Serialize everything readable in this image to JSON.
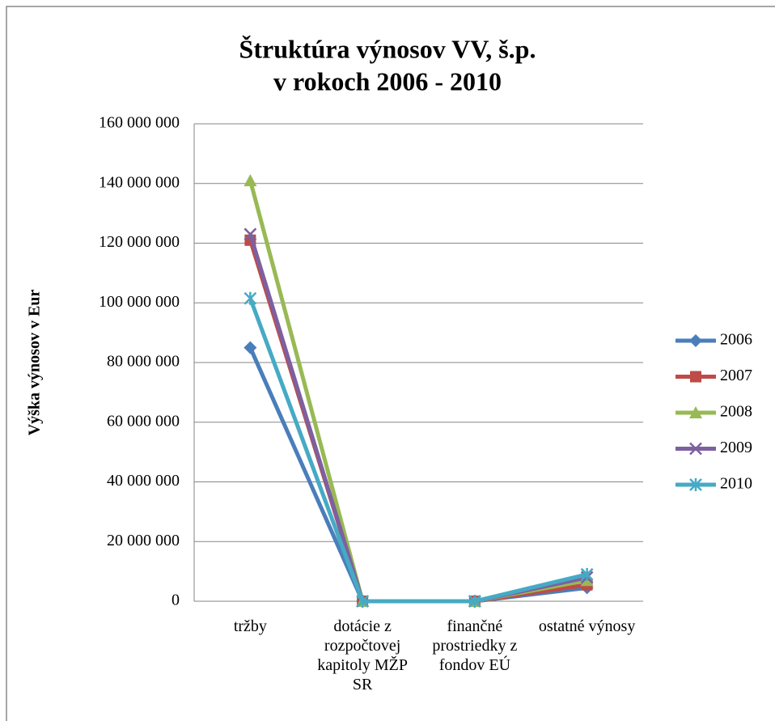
{
  "chart_data": {
    "type": "line",
    "title": "Štruktúra výnosov VV, š.p.",
    "subtitle": "v rokoch 2006 - 2010",
    "y_label": "Výška výnosov v Eur",
    "categories": [
      "tržby",
      "dotácie z rozpočtovej kapitoly MŽP SR",
      "finančné prostriedky z fondov EÚ",
      "ostatné výnosy"
    ],
    "series": [
      {
        "name": "2006",
        "color": "#4a7ebb",
        "marker": "diamond",
        "values": [
          85000000,
          0,
          0,
          4500000
        ]
      },
      {
        "name": "2007",
        "color": "#be4b48",
        "marker": "square",
        "values": [
          121000000,
          0,
          0,
          5500000
        ]
      },
      {
        "name": "2008",
        "color": "#98b954",
        "marker": "triangle",
        "values": [
          141000000,
          0,
          0,
          7000000
        ]
      },
      {
        "name": "2009",
        "color": "#7d60a0",
        "marker": "x",
        "values": [
          123000000,
          0,
          0,
          8000000
        ]
      },
      {
        "name": "2010",
        "color": "#46aac5",
        "marker": "star",
        "values": [
          101500000,
          0,
          0,
          9000000
        ]
      }
    ],
    "ylim": [
      0,
      160000000
    ],
    "yticks": [
      0,
      {
        "value": 20000000,
        "label": "20 000 000"
      },
      {
        "value": 40000000,
        "label": "40 000 000"
      },
      {
        "value": 60000000,
        "label": "60 000 000"
      },
      {
        "value": 80000000,
        "label": "80 000 000"
      },
      {
        "value": 100000000,
        "label": "100 000 000"
      },
      {
        "value": 120000000,
        "label": "120 000 000"
      },
      {
        "value": 140000000,
        "label": "140 000 000"
      },
      {
        "value": 160000000,
        "label": "160 000 000"
      }
    ],
    "grid": true,
    "legend": "right"
  }
}
